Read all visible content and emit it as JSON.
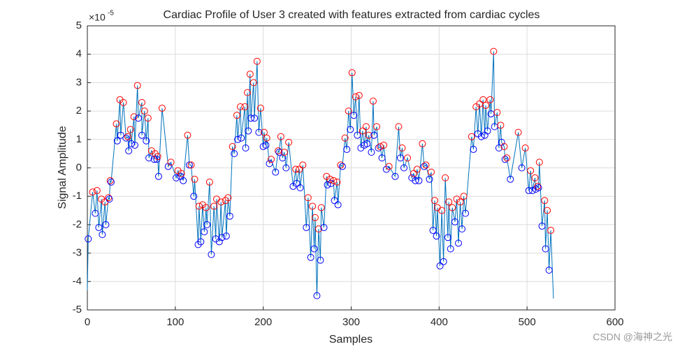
{
  "chart_data": {
    "type": "line",
    "title": "Cardiac Profile of User 3 created with features extracted from cardiac cycles",
    "xlabel": "Samples",
    "ylabel": "Signal Amplitude",
    "y_multiplier_base": "×10",
    "y_multiplier_exponent": "-5",
    "watermark": "CSDN @海神之光",
    "xlim": [
      0,
      600
    ],
    "xticks": [
      0,
      100,
      200,
      300,
      400,
      500,
      600
    ],
    "ylim": [
      -5,
      5
    ],
    "yticks": [
      -5,
      -4,
      -3,
      -2,
      -1,
      0,
      1,
      2,
      3,
      4,
      5
    ],
    "grid": true,
    "series": [
      {
        "color": "#0072bd",
        "x": [
          0,
          1,
          6,
          9,
          11,
          13,
          16,
          17,
          20,
          21,
          24,
          25,
          26,
          27,
          33,
          34,
          37,
          38,
          41,
          44,
          46,
          47,
          49,
          50,
          53,
          54,
          57,
          58,
          62,
          62,
          65,
          67,
          69,
          70,
          73,
          76,
          77,
          79,
          80,
          81,
          85,
          92,
          95,
          101,
          103,
          106,
          107,
          109,
          114,
          116,
          118,
          121,
          122,
          126,
          127,
          129,
          131,
          133,
          135,
          136,
          139,
          141,
          144,
          146,
          147,
          150,
          152,
          153,
          157,
          158,
          160,
          162,
          165,
          167,
          170,
          171,
          174,
          175,
          179,
          180,
          182,
          183,
          185,
          186,
          189,
          190,
          193,
          195,
          197,
          200,
          201,
          203,
          204,
          207,
          209,
          214,
          217,
          218,
          220,
          222,
          224,
          226,
          229,
          234,
          237,
          238,
          241,
          242,
          245,
          249,
          251,
          254,
          256,
          258,
          259,
          261,
          263,
          265,
          266,
          269,
          272,
          273,
          276,
          277,
          280,
          281,
          284,
          285,
          288,
          290,
          293,
          295,
          297,
          299,
          301,
          303,
          305,
          307,
          309,
          311,
          313,
          315,
          317,
          318,
          320,
          323,
          325,
          326,
          329,
          331,
          333,
          335,
          337,
          340,
          343,
          350,
          354,
          356,
          358,
          360,
          364,
          369,
          371,
          373,
          375,
          377,
          381,
          383,
          385,
          389,
          391,
          393,
          395,
          397,
          398,
          401,
          403,
          405,
          407,
          410,
          411,
          413,
          415,
          418,
          420,
          422,
          424,
          426,
          428,
          430,
          437,
          439,
          442,
          444,
          446,
          448,
          450,
          452,
          453,
          455,
          458,
          459,
          462,
          463,
          466,
          468,
          470,
          471,
          474,
          475,
          477,
          481,
          490,
          494,
          498,
          502,
          504,
          506,
          509,
          510,
          512,
          513,
          514,
          517,
          520,
          521,
          523,
          525,
          527,
          530
        ],
        "values": [
          -4.3,
          -2.5,
          -0.85,
          -1.6,
          -0.8,
          -2.1,
          -1.1,
          -2.35,
          -1.2,
          -2.0,
          -1.05,
          -1.1,
          -0.45,
          -0.5,
          1.55,
          0.95,
          2.4,
          1.15,
          2.3,
          1.05,
          1.1,
          0.6,
          1.35,
          0.85,
          1.8,
          0.8,
          2.9,
          1.75,
          2.3,
          1.15,
          2.0,
          0.95,
          1.75,
          0.35,
          0.6,
          0.3,
          0.5,
          0.3,
          0.4,
          -0.3,
          2.1,
          0.05,
          0.2,
          -0.35,
          -0.1,
          -0.3,
          -0.2,
          -0.45,
          1.15,
          0.1,
          0.1,
          -1.0,
          -0.4,
          -2.7,
          -1.35,
          -2.6,
          -1.3,
          -2.25,
          -1.4,
          -2.0,
          -0.5,
          -3.05,
          -1.35,
          -2.5,
          -1.1,
          -2.6,
          -1.2,
          -2.45,
          -1.15,
          -2.4,
          -1.05,
          -1.7,
          0.75,
          0.5,
          1.85,
          1.0,
          2.15,
          1.05,
          2.15,
          0.7,
          2.65,
          1.3,
          3.3,
          1.75,
          3.0,
          1.75,
          3.75,
          1.25,
          2.1,
          0.75,
          1.25,
          0.8,
          1.05,
          0.15,
          0.3,
          -0.15,
          0.6,
          0.55,
          1.1,
          0.35,
          0.55,
          0,
          0.9,
          -0.65,
          -0.05,
          -0.55,
          -0.05,
          -0.7,
          0.1,
          -2.1,
          -1.05,
          -3.15,
          -1.35,
          -2.85,
          -1.75,
          -4.5,
          -2.15,
          -3.25,
          -1.4,
          -2.1,
          -0.3,
          -0.6,
          -0.4,
          -0.55,
          -0.45,
          -1.15,
          -0.5,
          -1.3,
          0.1,
          0.05,
          1.05,
          0.65,
          2.0,
          1.35,
          3.35,
          1.85,
          2.5,
          1.15,
          2.55,
          0.7,
          1.3,
          0.8,
          1.45,
          0.85,
          1.15,
          0.55,
          2.35,
          1.15,
          1.45,
          0.7,
          0.75,
          0.35,
          0.8,
          -0.05,
          0.05,
          -0.3,
          1.45,
          0.35,
          0.7,
          0,
          0.35,
          -0.35,
          -0.2,
          -0.45,
          -0.05,
          -0.45,
          0.85,
          0.05,
          0.1,
          -0.4,
          -0.15,
          -2.2,
          -1.15,
          -2.4,
          -1.4,
          -3.45,
          -1.5,
          -3.3,
          -0.35,
          -2.45,
          -1.2,
          -2.85,
          -1.4,
          -1.9,
          -1.1,
          -2.65,
          -1.2,
          -2.15,
          -1.0,
          -1.6,
          1.1,
          0.65,
          2.15,
          1.2,
          2.25,
          1.1,
          2.4,
          1.15,
          2.2,
          1.3,
          2.4,
          1.9,
          4.1,
          1.45,
          1.95,
          0.7,
          1.5,
          0.9,
          0.75,
          0.3,
          0.35,
          -0.4,
          1.25,
          0,
          0.7,
          -0.8,
          -0.1,
          -0.8,
          -0.35,
          -0.75,
          -0.65,
          -0.7,
          0.2,
          -2.05,
          -1.15,
          -2.85,
          -1.5,
          -3.6,
          -2.2,
          -4.6
        ],
        "marker_colors": [
          null,
          "#00f",
          "#f00",
          "#00f",
          "#f00",
          "#00f",
          "#f00",
          "#00f",
          "#f00",
          "#00f",
          "#f00",
          "#00f",
          "#f00",
          "#00f",
          "#f00",
          "#00f",
          "#f00",
          "#00f",
          "#f00",
          "#00f",
          "#f00",
          "#00f",
          "#f00",
          "#00f",
          "#f00",
          "#00f",
          "#f00",
          "#00f",
          "#f00",
          "#00f",
          "#f00",
          "#00f",
          "#f00",
          "#00f",
          "#f00",
          "#00f",
          "#f00",
          "#00f",
          "#f00",
          "#00f",
          "#f00",
          "#00f",
          "#f00",
          "#00f",
          "#f00",
          "#00f",
          "#f00",
          "#00f",
          "#f00",
          "#00f",
          "#f00",
          "#00f",
          "#f00",
          "#00f",
          "#f00",
          "#00f",
          "#f00",
          "#00f",
          "#f00",
          "#00f",
          "#f00",
          "#00f",
          "#f00",
          "#00f",
          "#f00",
          "#00f",
          "#f00",
          "#00f",
          "#f00",
          "#00f",
          "#f00",
          "#00f",
          "#f00",
          "#00f",
          "#f00",
          "#00f",
          "#f00",
          "#00f",
          "#f00",
          "#00f",
          "#f00",
          "#00f",
          "#f00",
          "#00f",
          "#f00",
          "#00f",
          "#f00",
          "#00f",
          "#f00",
          "#00f",
          "#f00",
          "#00f",
          "#f00",
          "#00f",
          "#f00",
          "#00f",
          "#f00",
          "#00f",
          "#f00",
          "#00f",
          "#f00",
          "#00f",
          "#f00",
          "#00f",
          "#f00",
          "#00f",
          "#f00",
          "#00f",
          "#f00",
          "#00f",
          "#f00",
          "#00f",
          "#f00",
          "#00f",
          "#f00",
          "#00f",
          "#f00",
          "#00f",
          "#f00",
          "#00f",
          "#f00",
          "#00f",
          "#f00",
          "#00f",
          "#f00",
          "#00f",
          "#f00",
          "#00f",
          "#f00",
          "#00f",
          "#f00",
          "#00f",
          "#f00",
          "#00f",
          "#f00",
          "#00f",
          "#f00",
          "#00f",
          "#f00",
          "#00f",
          "#f00",
          "#00f",
          "#f00",
          "#00f",
          "#f00",
          "#00f",
          "#f00",
          "#00f",
          "#f00",
          "#00f",
          "#f00",
          "#00f",
          "#f00",
          "#00f",
          "#f00",
          "#00f",
          "#f00",
          "#00f",
          "#f00",
          "#00f",
          "#f00",
          "#00f",
          "#f00",
          "#00f",
          "#f00",
          "#00f",
          "#f00",
          "#00f",
          "#f00",
          "#00f",
          "#f00",
          "#00f",
          "#f00",
          "#00f",
          "#f00",
          "#00f",
          "#f00",
          "#00f",
          "#f00",
          "#00f",
          "#f00",
          "#00f",
          "#f00",
          "#00f",
          "#f00",
          "#00f",
          "#f00",
          "#00f",
          "#f00",
          "#00f",
          "#f00",
          "#00f",
          "#f00",
          "#00f",
          "#f00",
          "#00f",
          "#f00",
          "#00f",
          "#f00",
          "#00f",
          "#f00",
          "#00f",
          "#f00",
          "#00f",
          "#f00",
          "#00f",
          "#f00",
          "#00f",
          "#f00",
          "#00f",
          "#f00",
          "#00f",
          "#f00",
          "#00f",
          "#f00",
          "#00f",
          "#f00",
          "#00f",
          "#f00",
          "#00f",
          "#f00",
          "#00f",
          "#f00",
          "#00f",
          "#f00",
          "#00f",
          "#f00",
          "#00f",
          "#f00",
          null
        ]
      }
    ]
  }
}
